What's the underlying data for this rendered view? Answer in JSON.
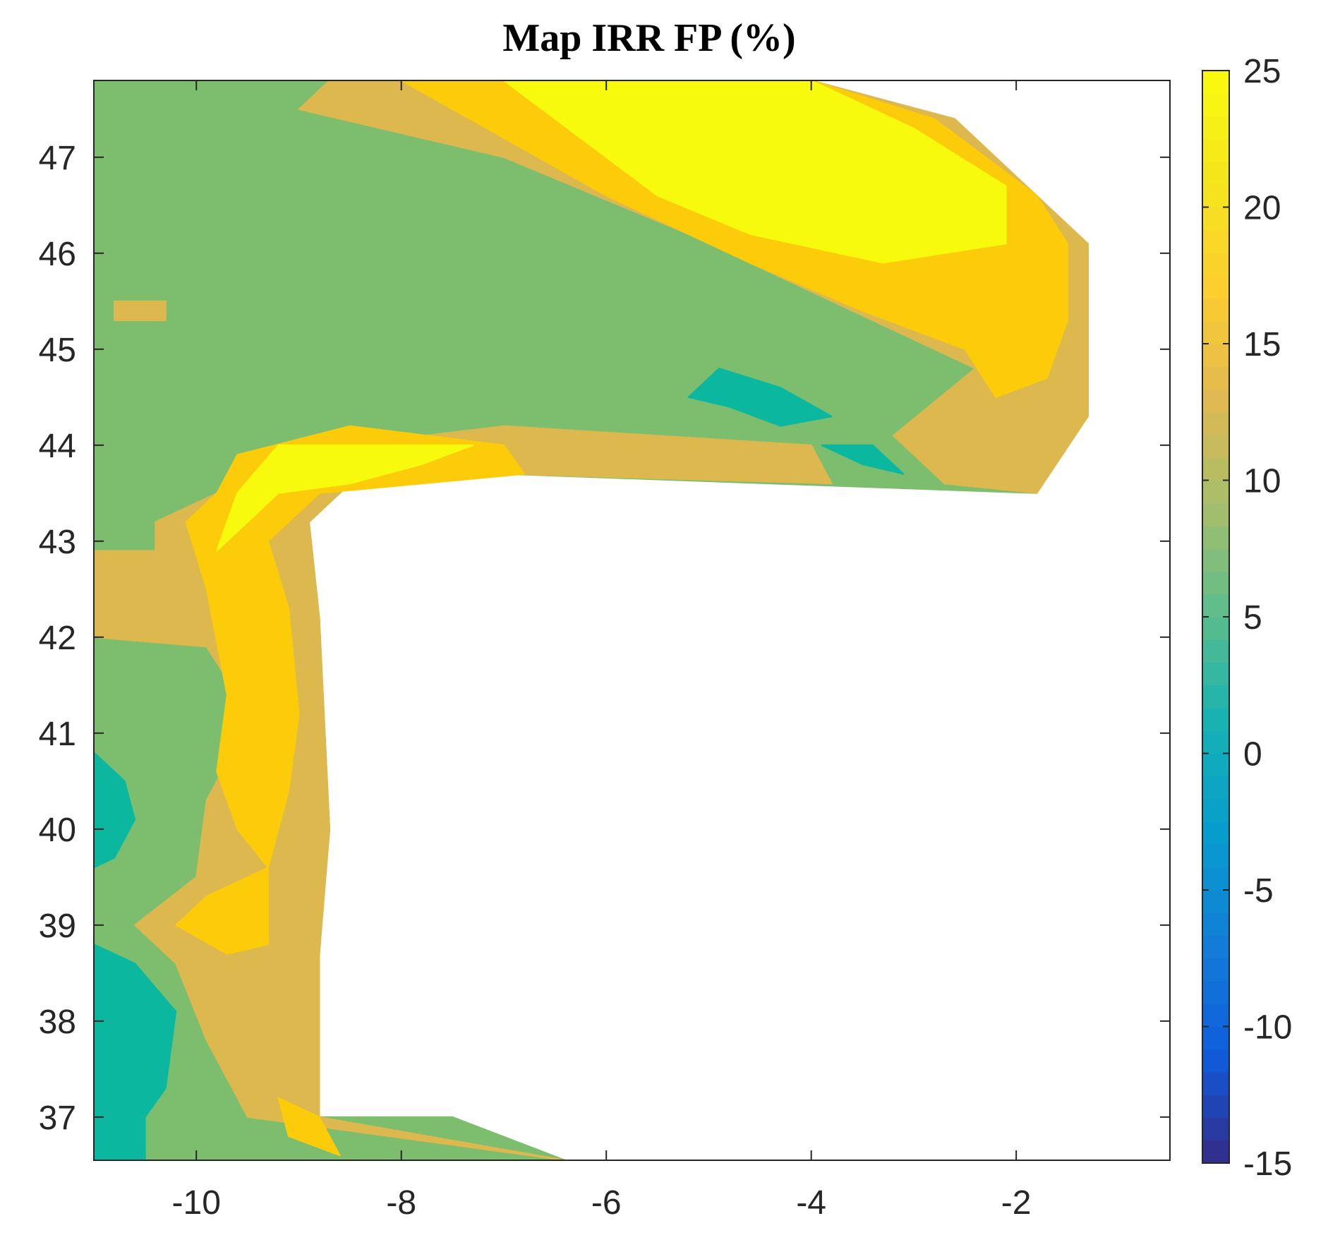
{
  "chart_data": {
    "type": "heatmap",
    "title": "Map IRR FP (%)",
    "xlabel": "",
    "ylabel": "",
    "xlim": [
      -11.0,
      -0.5
    ],
    "ylim": [
      36.55,
      47.8
    ],
    "x_ticks": [
      -10,
      -8,
      -6,
      -4,
      -2
    ],
    "x_tick_labels": [
      "-10",
      "-8",
      "-6",
      "-4",
      "-2"
    ],
    "y_ticks": [
      37,
      38,
      39,
      40,
      41,
      42,
      43,
      44,
      45,
      46,
      47
    ],
    "y_tick_labels": [
      "37",
      "38",
      "39",
      "40",
      "41",
      "42",
      "43",
      "44",
      "45",
      "46",
      "47"
    ],
    "colorbar": {
      "range": [
        -15,
        25
      ],
      "ticks": [
        -15,
        -10,
        -5,
        0,
        5,
        10,
        15,
        20,
        25
      ],
      "tick_labels": [
        "-15",
        "-10",
        "-5",
        "0",
        "5",
        "10",
        "15",
        "20",
        "25"
      ],
      "colormap": "parula",
      "placement": "right"
    },
    "regions": [
      {
        "level": 10,
        "color": "#7dbd6e",
        "lonlat": [
          [
            -11.0,
            47.8
          ],
          [
            -6.0,
            47.8
          ],
          [
            -4.0,
            47.8
          ],
          [
            -1.3,
            46.1
          ],
          [
            -1.3,
            44.3
          ],
          [
            -1.8,
            43.5
          ],
          [
            -7.0,
            43.7
          ],
          [
            -8.5,
            43.6
          ],
          [
            -8.9,
            43.2
          ],
          [
            -8.8,
            42.2
          ],
          [
            -8.7,
            40.0
          ],
          [
            -8.8,
            38.7
          ],
          [
            -8.8,
            37.0
          ],
          [
            -7.5,
            37.0
          ],
          [
            -6.4,
            36.55
          ],
          [
            -11.0,
            36.55
          ]
        ]
      },
      {
        "level": 14,
        "color": "#dcb84e",
        "lonlat": [
          [
            -9.3,
            43.9
          ],
          [
            -9.6,
            43.6
          ],
          [
            -10.0,
            43.4
          ],
          [
            -10.4,
            43.2
          ],
          [
            -10.4,
            42.9
          ],
          [
            -11.0,
            42.9
          ],
          [
            -11.0,
            42.0
          ],
          [
            -9.9,
            41.9
          ],
          [
            -9.6,
            41.4
          ],
          [
            -9.7,
            40.7
          ],
          [
            -9.9,
            40.3
          ],
          [
            -10.0,
            39.5
          ],
          [
            -10.6,
            39.0
          ],
          [
            -10.2,
            38.6
          ],
          [
            -9.9,
            37.8
          ],
          [
            -9.5,
            37.0
          ],
          [
            -6.4,
            36.55
          ],
          [
            -8.8,
            37.0
          ],
          [
            -8.8,
            38.7
          ],
          [
            -8.7,
            40.0
          ],
          [
            -8.8,
            42.2
          ],
          [
            -8.9,
            43.2
          ],
          [
            -8.5,
            43.6
          ],
          [
            -7.0,
            43.7
          ],
          [
            -3.8,
            43.6
          ],
          [
            -4.0,
            44.0
          ],
          [
            -5.5,
            44.1
          ],
          [
            -7.0,
            44.2
          ]
        ]
      },
      {
        "level": 14,
        "color": "#dcb84e",
        "lonlat": [
          [
            -8.7,
            47.8
          ],
          [
            -4.0,
            47.8
          ],
          [
            -2.6,
            47.4
          ],
          [
            -1.3,
            46.1
          ],
          [
            -1.3,
            44.3
          ],
          [
            -1.8,
            43.5
          ],
          [
            -2.7,
            43.6
          ],
          [
            -3.2,
            44.1
          ],
          [
            -2.4,
            44.8
          ],
          [
            -3.8,
            45.5
          ],
          [
            -5.2,
            46.2
          ],
          [
            -7.0,
            47.0
          ],
          [
            -9.0,
            47.5
          ]
        ]
      },
      {
        "level": 14,
        "color": "#dcb84e",
        "lonlat": [
          [
            -10.8,
            45.5
          ],
          [
            -10.3,
            45.5
          ],
          [
            -10.3,
            45.3
          ],
          [
            -10.8,
            45.3
          ]
        ]
      },
      {
        "level": 20,
        "color": "#fccb0a",
        "lonlat": [
          [
            -8.0,
            47.8
          ],
          [
            -4.0,
            47.8
          ],
          [
            -2.8,
            47.4
          ],
          [
            -1.8,
            46.6
          ],
          [
            -1.5,
            46.1
          ],
          [
            -1.5,
            45.3
          ],
          [
            -1.7,
            44.7
          ],
          [
            -2.2,
            44.5
          ],
          [
            -2.5,
            45.0
          ],
          [
            -3.5,
            45.4
          ],
          [
            -4.6,
            45.9
          ],
          [
            -6.0,
            46.6
          ],
          [
            -7.0,
            47.2
          ]
        ]
      },
      {
        "level": 20,
        "color": "#fccb0a",
        "lonlat": [
          [
            -9.6,
            43.9
          ],
          [
            -9.8,
            43.5
          ],
          [
            -10.1,
            43.2
          ],
          [
            -9.9,
            42.5
          ],
          [
            -9.7,
            41.4
          ],
          [
            -9.8,
            40.6
          ],
          [
            -9.6,
            40.0
          ],
          [
            -9.3,
            39.6
          ],
          [
            -9.9,
            39.3
          ],
          [
            -10.2,
            39.0
          ],
          [
            -9.7,
            38.7
          ],
          [
            -9.3,
            38.8
          ],
          [
            -9.3,
            39.6
          ],
          [
            -9.1,
            40.4
          ],
          [
            -9.0,
            41.2
          ],
          [
            -9.1,
            42.3
          ],
          [
            -9.3,
            43.0
          ],
          [
            -8.8,
            43.5
          ],
          [
            -6.8,
            43.7
          ],
          [
            -7.0,
            44.0
          ],
          [
            -8.5,
            44.2
          ]
        ]
      },
      {
        "level": 20,
        "color": "#fccb0a",
        "lonlat": [
          [
            -9.2,
            37.2
          ],
          [
            -9.1,
            36.8
          ],
          [
            -8.6,
            36.6
          ],
          [
            -8.8,
            37.0
          ]
        ]
      },
      {
        "level": 25,
        "color": "#f8fa0d",
        "lonlat": [
          [
            -7.0,
            47.8
          ],
          [
            -4.0,
            47.8
          ],
          [
            -3.0,
            47.3
          ],
          [
            -2.1,
            46.7
          ],
          [
            -2.1,
            46.1
          ],
          [
            -3.3,
            45.9
          ],
          [
            -4.6,
            46.2
          ],
          [
            -5.5,
            46.6
          ],
          [
            -6.0,
            47.0
          ]
        ]
      },
      {
        "level": 25,
        "color": "#f8fa0d",
        "lonlat": [
          [
            -9.2,
            43.5
          ],
          [
            -9.5,
            43.2
          ],
          [
            -9.8,
            42.9
          ],
          [
            -9.6,
            43.5
          ],
          [
            -9.2,
            44.0
          ],
          [
            -7.3,
            44.0
          ],
          [
            -7.8,
            43.8
          ],
          [
            -8.5,
            43.6
          ]
        ]
      },
      {
        "level": 4,
        "color": "#0bb89f",
        "lonlat": [
          [
            -11.0,
            40.8
          ],
          [
            -10.7,
            40.5
          ],
          [
            -10.6,
            40.1
          ],
          [
            -10.8,
            39.7
          ],
          [
            -11.0,
            39.6
          ]
        ]
      },
      {
        "level": 4,
        "color": "#0bb89f",
        "lonlat": [
          [
            -11.0,
            38.8
          ],
          [
            -10.6,
            38.6
          ],
          [
            -10.2,
            38.1
          ],
          [
            -10.3,
            37.3
          ],
          [
            -10.5,
            37.0
          ],
          [
            -10.5,
            36.55
          ],
          [
            -11.0,
            36.55
          ]
        ]
      },
      {
        "level": 4,
        "color": "#0bb89f",
        "lonlat": [
          [
            -5.2,
            44.5
          ],
          [
            -4.9,
            44.8
          ],
          [
            -4.3,
            44.6
          ],
          [
            -3.8,
            44.3
          ],
          [
            -4.3,
            44.2
          ],
          [
            -4.8,
            44.4
          ]
        ]
      },
      {
        "level": 4,
        "color": "#0bb89f",
        "lonlat": [
          [
            -3.9,
            44.0
          ],
          [
            -3.5,
            43.8
          ],
          [
            -3.1,
            43.7
          ],
          [
            -3.4,
            44.0
          ]
        ]
      }
    ]
  }
}
